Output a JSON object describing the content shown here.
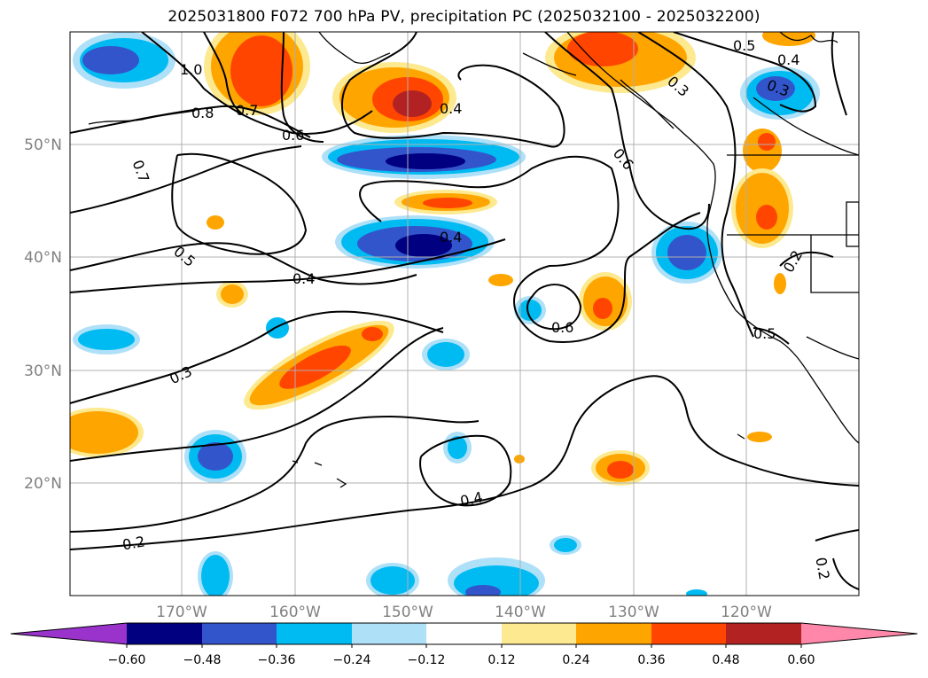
{
  "map": {
    "title": "2025031800 F072 700 hPa PV, precipitation PC (2025032100 - 2025032200)",
    "lat_labels": [
      "50°N",
      "40°N",
      "30°N",
      "20°N"
    ],
    "lon_labels": [
      "170°W",
      "160°W",
      "150°W",
      "140°W",
      "130°W",
      "120°W"
    ],
    "contour_labels": [
      "1.0",
      "0.8",
      "0.7",
      "0.6",
      "0.7",
      "0.4",
      "0.5",
      "0.4",
      "0.4",
      "0.3",
      "0.6",
      "0.6",
      "0.2",
      "0.4",
      "0.5",
      "0.4",
      "0.3",
      "0.2",
      "0.5",
      "0.2"
    ],
    "colors": {
      "neg_060": "#9933cc",
      "neg_048": "#000080",
      "neg_036": "#3355cc",
      "neg_024": "#00bbf2",
      "neg_012": "#aee0f8",
      "zero": "#ffffff",
      "pos_012": "#fde98f",
      "pos_024": "#ffa500",
      "pos_036": "#ff4500",
      "pos_048": "#b22222",
      "pos_060": "#ff88aa"
    }
  },
  "colorbar": {
    "labels": [
      "−0.60",
      "−0.48",
      "−0.36",
      "−0.24",
      "−0.12",
      "0.12",
      "0.24",
      "0.36",
      "0.48",
      "0.60"
    ],
    "colors": [
      "#9933cc",
      "#000080",
      "#3355cc",
      "#00bbf2",
      "#aee0f8",
      "#ffffff",
      "#fde98f",
      "#ffa500",
      "#ff4500",
      "#b22222",
      "#ff88aa"
    ]
  }
}
